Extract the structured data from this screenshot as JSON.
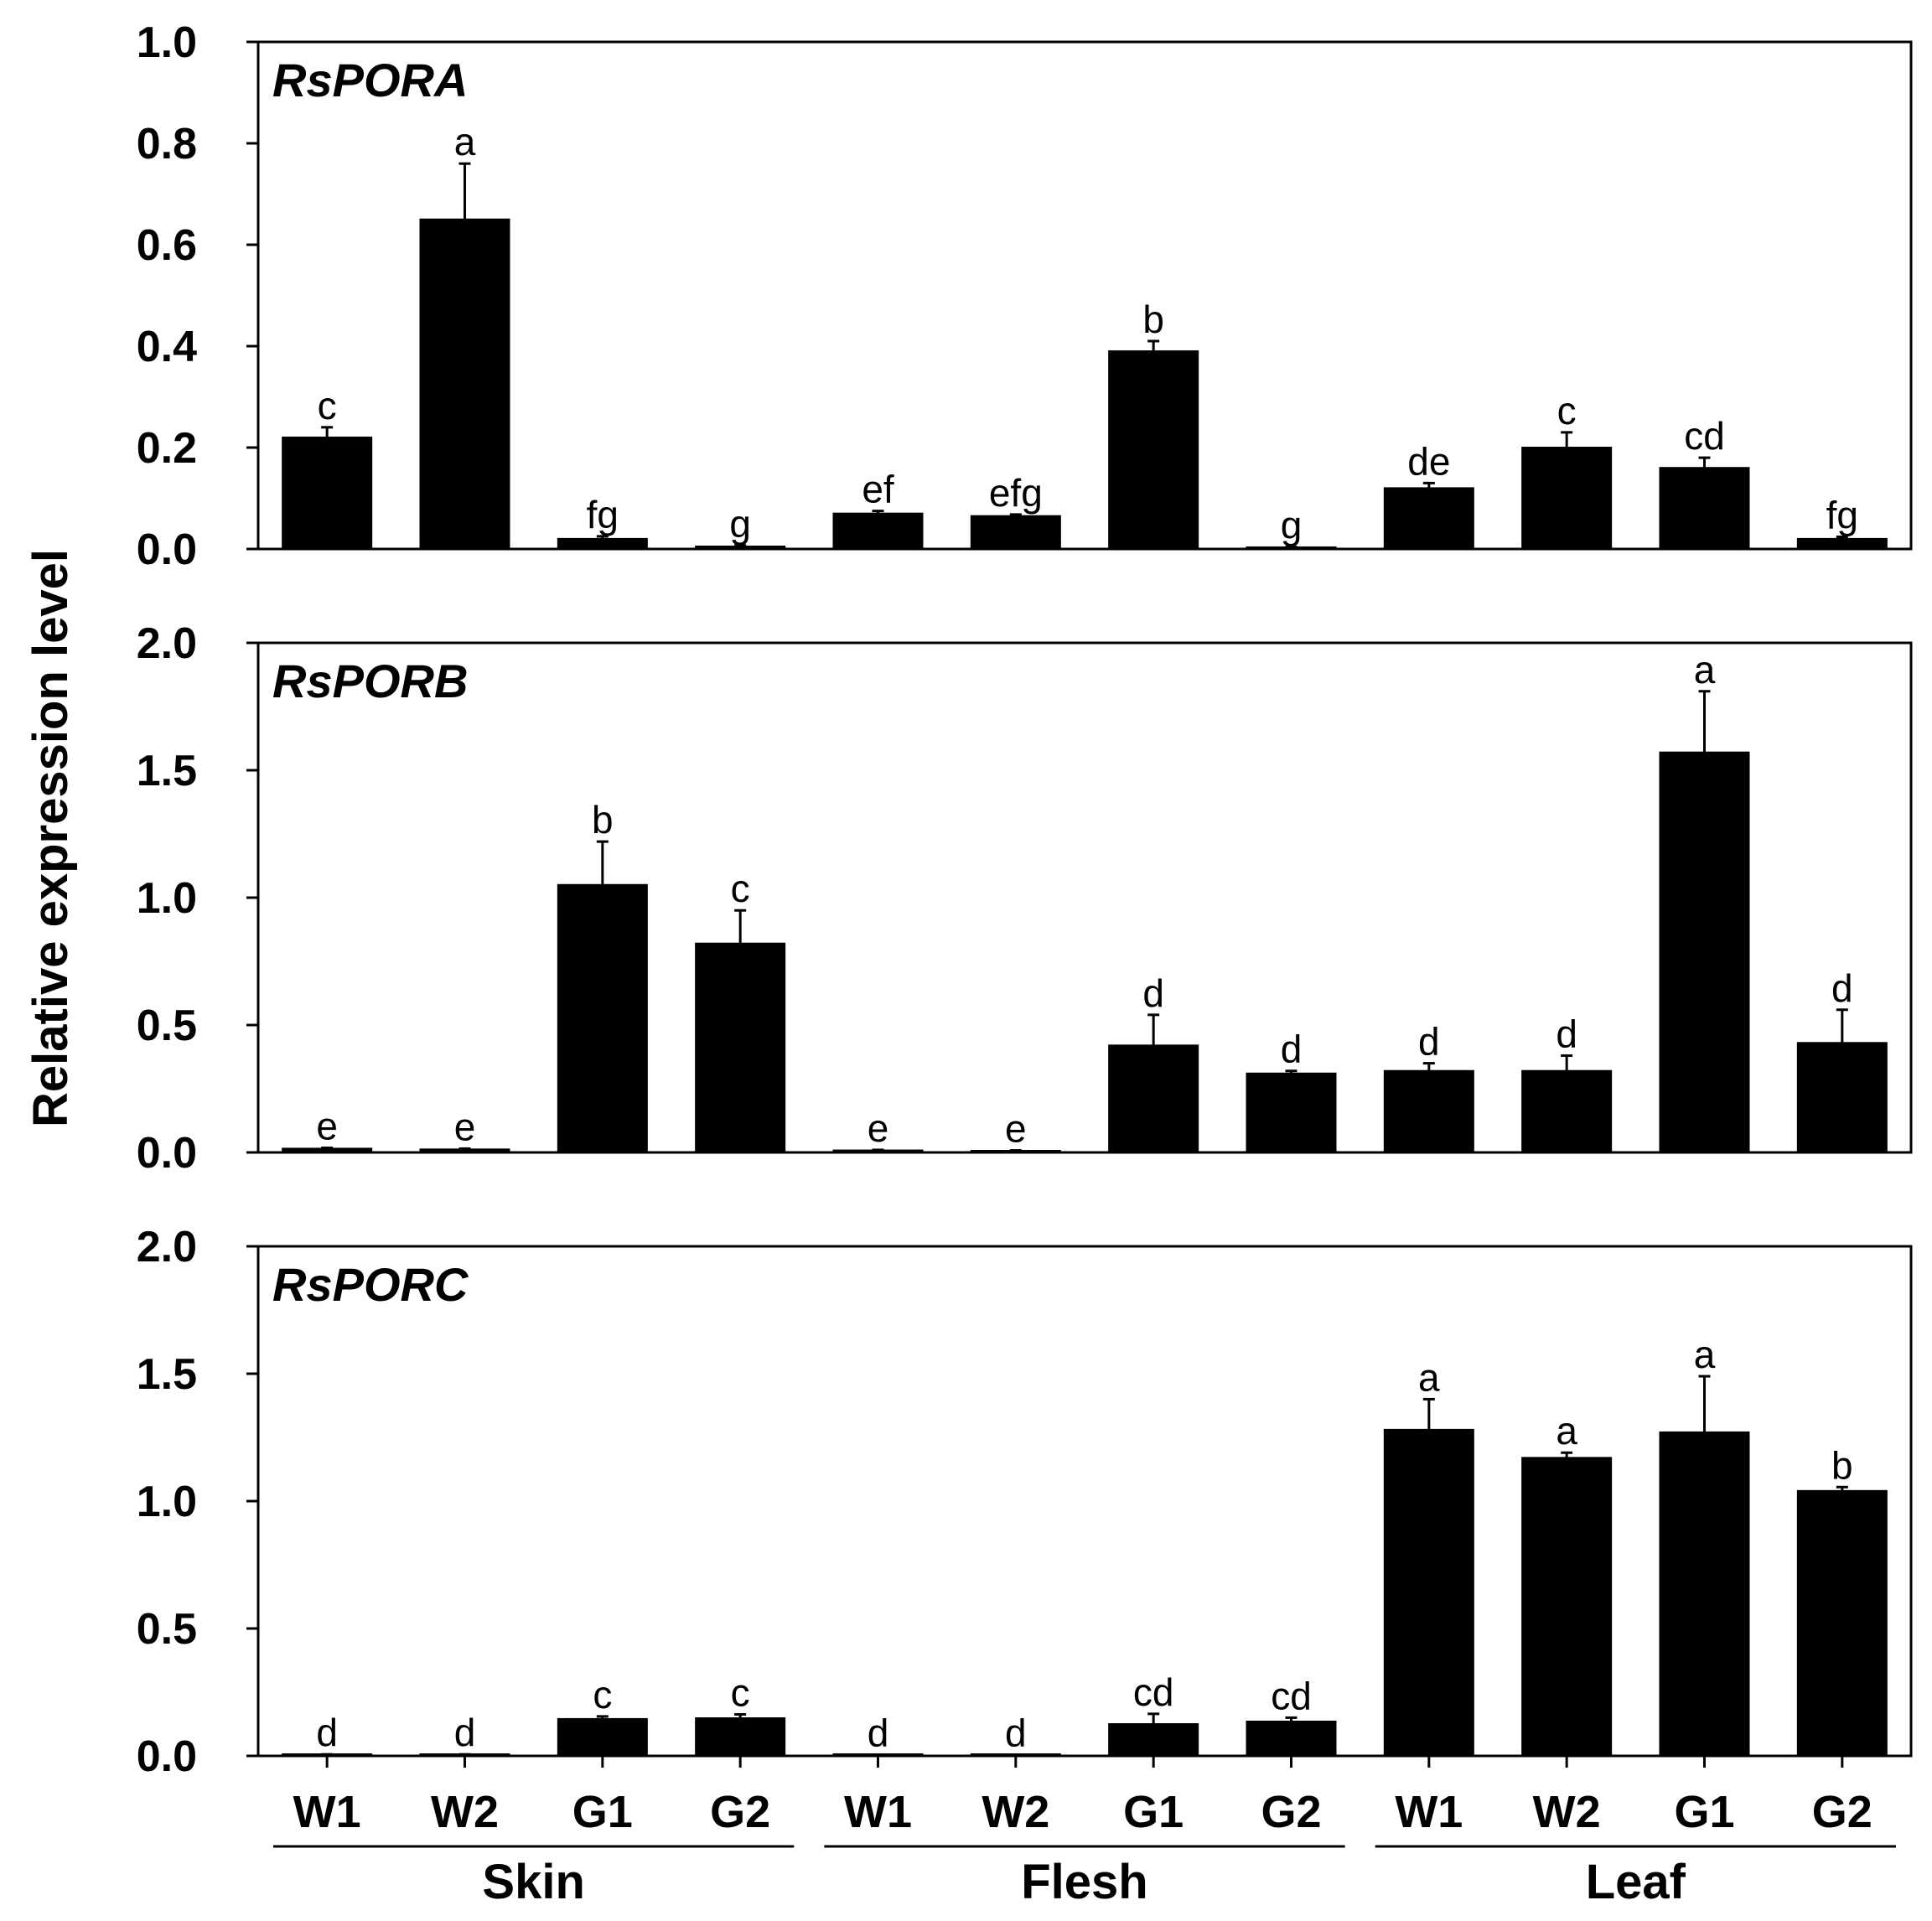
{
  "chart_data": {
    "type": "bar",
    "ylabel": "Relative expression level",
    "categories": [
      "W1",
      "W2",
      "G1",
      "G2",
      "W1",
      "W2",
      "G1",
      "G2",
      "W1",
      "W2",
      "G1",
      "G2"
    ],
    "groups": [
      {
        "label": "Skin",
        "categories": [
          "W1",
          "W2",
          "G1",
          "G2"
        ]
      },
      {
        "label": "Flesh",
        "categories": [
          "W1",
          "W2",
          "G1",
          "G2"
        ]
      },
      {
        "label": "Leaf",
        "categories": [
          "W1",
          "W2",
          "G1",
          "G2"
        ]
      }
    ],
    "panels": [
      {
        "title": "RsPORA",
        "ylim": [
          0,
          1.0
        ],
        "yticks": [
          "0.0",
          "0.2",
          "0.4",
          "0.6",
          "0.8",
          "1.0"
        ],
        "values": [
          0.22,
          0.65,
          0.02,
          0.005,
          0.07,
          0.065,
          0.39,
          0.003,
          0.12,
          0.2,
          0.16,
          0.02
        ],
        "errors": [
          0.02,
          0.11,
          0.005,
          0.002,
          0.005,
          0.003,
          0.02,
          0.001,
          0.01,
          0.03,
          0.02,
          0.004
        ],
        "letters": [
          "c",
          "a",
          "fg",
          "g",
          "ef",
          "efg",
          "b",
          "g",
          "de",
          "c",
          "cd",
          "fg"
        ]
      },
      {
        "title": "RsPORB",
        "ylim": [
          0,
          2.0
        ],
        "yticks": [
          "0.0",
          "0.5",
          "1.0",
          "1.5",
          "2.0"
        ],
        "values": [
          0.015,
          0.012,
          1.05,
          0.82,
          0.008,
          0.006,
          0.42,
          0.31,
          0.32,
          0.32,
          1.57,
          0.43
        ],
        "errors": [
          0.003,
          0.003,
          0.17,
          0.13,
          0.002,
          0.002,
          0.12,
          0.01,
          0.03,
          0.06,
          0.24,
          0.13
        ],
        "letters": [
          "e",
          "e",
          "b",
          "c",
          "e",
          "e",
          "d",
          "d",
          "d",
          "d",
          "a",
          "d"
        ]
      },
      {
        "title": "RsPORC",
        "ylim": [
          0,
          2.0
        ],
        "yticks": [
          "0.0",
          "0.5",
          "1.0",
          "1.5",
          "2.0"
        ],
        "values": [
          0.005,
          0.005,
          0.145,
          0.148,
          0.004,
          0.004,
          0.125,
          0.135,
          1.28,
          1.17,
          1.27,
          1.04
        ],
        "errors": [
          0.001,
          0.001,
          0.01,
          0.015,
          0.001,
          0.001,
          0.04,
          0.015,
          0.12,
          0.02,
          0.22,
          0.015
        ],
        "letters": [
          "d",
          "d",
          "c",
          "c",
          "d",
          "d",
          "cd",
          "cd",
          "a",
          "a",
          "a",
          "b"
        ]
      }
    ]
  }
}
